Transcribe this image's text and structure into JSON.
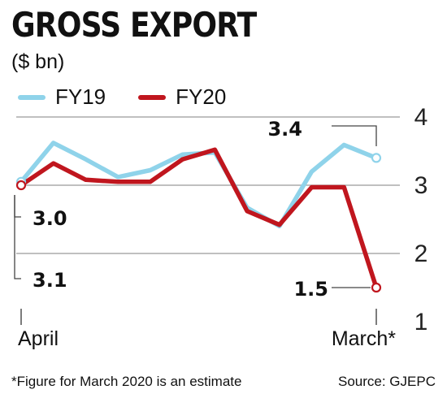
{
  "chart_data": {
    "type": "line",
    "title": "GROSS EXPORT",
    "unit": "($ bn)",
    "x_labels": [
      "April",
      "March*"
    ],
    "ylim": [
      1,
      4
    ],
    "yticks": [
      "4",
      "3",
      "2",
      "1"
    ],
    "grid": true,
    "legend_position": "top-left",
    "series": [
      {
        "name": "FY19",
        "color": "#8fd3ea",
        "values": [
          3.05,
          3.62,
          3.38,
          3.12,
          3.22,
          3.45,
          3.48,
          2.67,
          2.4,
          3.2,
          3.59,
          3.4
        ]
      },
      {
        "name": "FY20",
        "color": "#c0161e",
        "values": [
          3.0,
          3.32,
          3.08,
          3.05,
          3.05,
          3.38,
          3.52,
          2.62,
          2.42,
          2.97,
          2.97,
          1.5
        ]
      }
    ],
    "annotations": [
      {
        "text": "3.0",
        "series": "FY20",
        "point": "first"
      },
      {
        "text": "3.1",
        "series": "FY19",
        "point": "first"
      },
      {
        "text": "3.4",
        "series": "FY19",
        "point": "last"
      },
      {
        "text": "1.5",
        "series": "FY20",
        "point": "last"
      }
    ]
  },
  "footer": {
    "note": "*Figure for March 2020 is an estimate",
    "source": "Source: GJEPC"
  }
}
